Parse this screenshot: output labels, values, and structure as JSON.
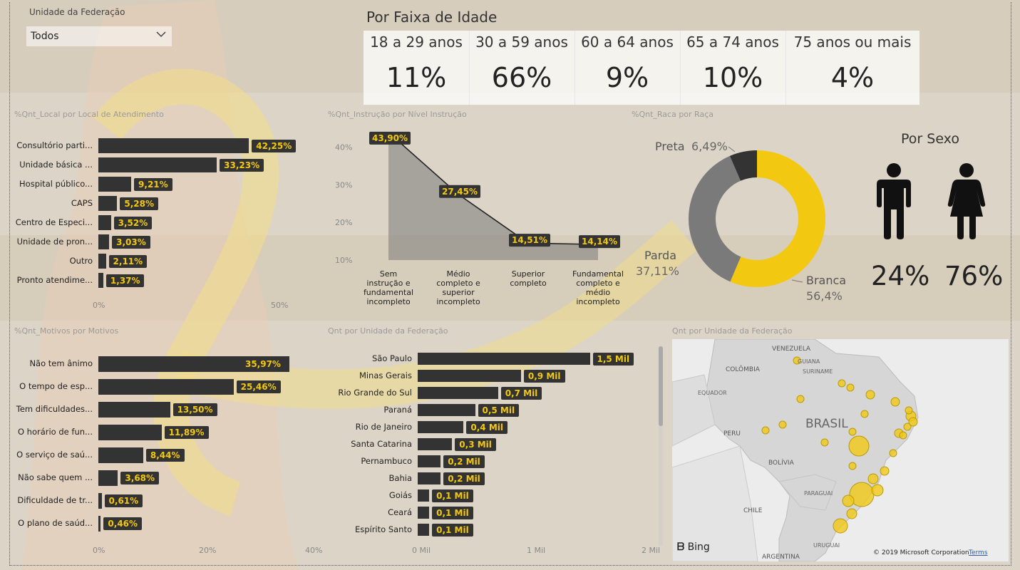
{
  "filter": {
    "title": "Unidade da Federação",
    "value": "Todos"
  },
  "age": {
    "title": "Por Faixa de Idade",
    "cards": [
      {
        "label": "18 a 29 anos",
        "value": "11%"
      },
      {
        "label": "30 a 59 anos",
        "value": "66%"
      },
      {
        "label": "60 a 64 anos",
        "value": "9%"
      },
      {
        "label": "65 a 74 anos",
        "value": "10%"
      },
      {
        "label": "75 anos ou mais",
        "value": "4%"
      }
    ]
  },
  "sexo": {
    "title": "Por Sexo",
    "male": "24%",
    "female": "76%"
  },
  "colors": {
    "bar": "#333333",
    "label_bg": "#333333",
    "label_text": "#f2c811",
    "accent": "#f2c811",
    "gray": "#7a7a7a",
    "dark": "#333333"
  },
  "chart_data": [
    {
      "type": "bar",
      "orientation": "horizontal",
      "title": "%Qnt_Local por Local de Atendimento",
      "categories": [
        "Consultório parti...",
        "Unidade básica ...",
        "Hospital público...",
        "CAPS",
        "Centro de Especi...",
        "Unidade de pron...",
        "Outro",
        "Pronto atendime..."
      ],
      "values": [
        42.25,
        33.23,
        9.21,
        5.28,
        3.52,
        3.03,
        2.11,
        1.37
      ],
      "labels": [
        "42,25%",
        "33,23%",
        "9,21%",
        "5,28%",
        "3,52%",
        "3,03%",
        "2,11%",
        "1,37%"
      ],
      "xlim": [
        0,
        50
      ],
      "xticks": [
        "0%",
        "50%"
      ]
    },
    {
      "type": "area",
      "title": "%Qnt_Instrução por Nível Instrução",
      "categories": [
        "Sem instrução e fundamental incompleto",
        "Médio completo e superior incompleto",
        "Superior completo",
        "Fundamental completo e médio incompleto"
      ],
      "category_lines": [
        [
          "Sem",
          "instrução e",
          "fundamental",
          "incompleto"
        ],
        [
          "Médio",
          "completo e",
          "superior",
          "incompleto"
        ],
        [
          "Superior",
          "completo"
        ],
        [
          "Fundamental",
          "completo e",
          "médio",
          "incompleto"
        ]
      ],
      "values": [
        43.9,
        27.45,
        14.51,
        14.14
      ],
      "labels": [
        "43,90%",
        "27,45%",
        "14,51%",
        "14,14%"
      ],
      "ylim": [
        10,
        45
      ],
      "yticks": [
        "10%",
        "20%",
        "30%",
        "40%"
      ]
    },
    {
      "type": "pie",
      "donut": true,
      "title": "%Qnt_Raca por Raça",
      "slices": [
        {
          "name": "Branca",
          "value": 56.4,
          "label": "56,4%",
          "color": "#f2c811"
        },
        {
          "name": "Parda",
          "value": 37.11,
          "label": "37,11%",
          "color": "#7a7a7a"
        },
        {
          "name": "Preta",
          "value": 6.49,
          "label": "6,49%",
          "color": "#333333"
        }
      ]
    },
    {
      "type": "bar",
      "orientation": "horizontal",
      "title": "%Qnt_Motivos por Motivos",
      "categories": [
        "Não tem ânimo",
        "O tempo de esp...",
        "Tem dificuldades...",
        "O horário de fun...",
        "O serviço de saú...",
        "Não sabe quem ...",
        "Dificuldade de tr...",
        "O plano de saúd..."
      ],
      "values": [
        35.97,
        25.46,
        13.5,
        11.89,
        8.44,
        3.68,
        0.61,
        0.46
      ],
      "labels": [
        "35,97%",
        "25,46%",
        "13,50%",
        "11,89%",
        "8,44%",
        "3,68%",
        "0,61%",
        "0,46%"
      ],
      "xlim": [
        0,
        40
      ],
      "xticks": [
        "0%",
        "20%",
        "40%"
      ]
    },
    {
      "type": "bar",
      "orientation": "horizontal",
      "title": "Qnt por Unidade da Federação",
      "categories": [
        "São Paulo",
        "Minas Gerais",
        "Rio Grande do Sul",
        "Paraná",
        "Rio de Janeiro",
        "Santa Catarina",
        "Pernambuco",
        "Bahia",
        "Goiás",
        "Ceará",
        "Espírito Santo"
      ],
      "values": [
        1.5,
        0.9,
        0.7,
        0.5,
        0.4,
        0.3,
        0.2,
        0.2,
        0.1,
        0.1,
        0.1
      ],
      "labels": [
        "1,5 Mil",
        "0,9 Mil",
        "0,7 Mil",
        "0,5 Mil",
        "0,4 Mil",
        "0,3 Mil",
        "0,2 Mil",
        "0,2 Mil",
        "0,1 Mil",
        "0,1 Mil",
        "0,1 Mil"
      ],
      "xlim": [
        0,
        2
      ],
      "xticks": [
        "0 Mil",
        "1 Mil",
        "2 Mil"
      ]
    }
  ],
  "map": {
    "title": "Qnt por Unidade da Federação",
    "labels": [
      "VENEZUELA",
      "GUIANA",
      "SURINAME",
      "COLÔMBIA",
      "EQUADOR",
      "PERU",
      "BRASIL",
      "BOLÍVIA",
      "PARAGUAI",
      "CHILE",
      "URUGUAI",
      "ARGENTINA"
    ],
    "attribution": "Bing",
    "copyright": "© 2019 Microsoft Corporation",
    "terms": "Terms"
  }
}
